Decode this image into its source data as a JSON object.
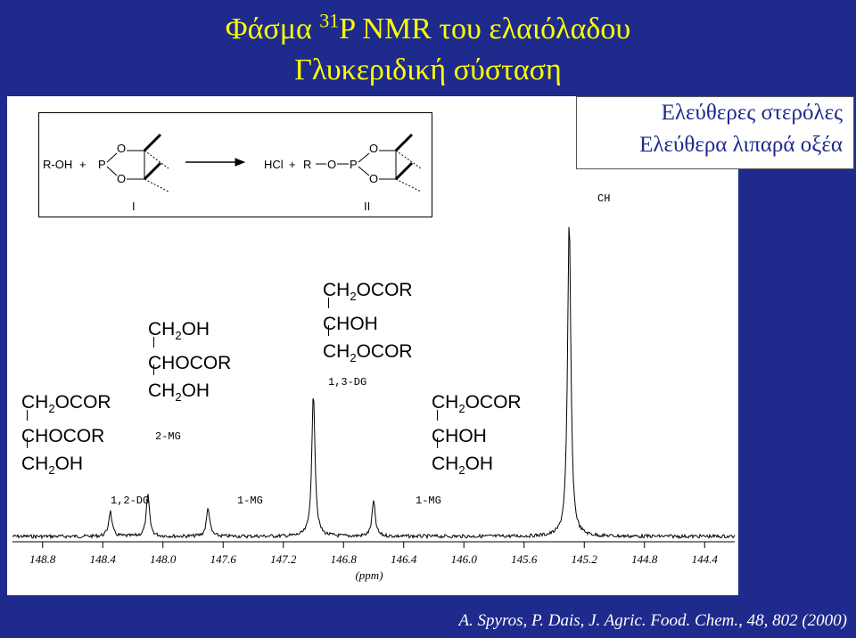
{
  "title": {
    "prefix": "Φάσμα ",
    "isotope": "31",
    "rest": "P NMR του ελαιόλαδου",
    "line2": "Γλυκεριδική σύσταση"
  },
  "label_box": {
    "line1": "Ελεύθερες στερόλες",
    "line2": "Ελεύθερα λιπαρά οξέα"
  },
  "reaction": {
    "left_reagent": "R-OH",
    "plus1": "+",
    "p_left": "P",
    "o_left_top": "O",
    "o_left_bottom": "O",
    "product_hcl": "HCl",
    "plus2": "+",
    "r_right": "R",
    "o_mid": "O",
    "p_right": "P",
    "o_right_top": "O",
    "o_right_bottom": "O",
    "label_I": "I",
    "label_II": "II"
  },
  "peak_labels": {
    "ch": "CH",
    "dg13": "1,3-DG",
    "mg2": "2-MG",
    "dg12": "1,2-DG",
    "mg1_left": "1-MG",
    "mg1_right": "1-MG"
  },
  "structures": {
    "dg12": [
      "CH",
      "2",
      "OCOR",
      "CHOCOR",
      "CH",
      "2",
      "OH"
    ],
    "mg2": [
      "CH",
      "2",
      "OH",
      "CHOCOR",
      "CH",
      "2",
      "OH"
    ],
    "dg13": [
      "CH",
      "2",
      "OCOR",
      "CHOH",
      "CH",
      "2",
      "OCOR"
    ],
    "mg1": [
      "CH",
      "2",
      "OCOR",
      "CHOH",
      "CH",
      "2",
      "OH"
    ]
  },
  "chart_data": {
    "type": "line",
    "xlabel": "(ppm)",
    "ticks": [
      "148.8",
      "148.4",
      "148.0",
      "147.6",
      "147.2",
      "146.8",
      "146.4",
      "146.0",
      "145.6",
      "145.2",
      "144.8",
      "144.4"
    ],
    "xlim": [
      149.0,
      144.2
    ],
    "x_reversed": true,
    "peaks": [
      {
        "label": "1,2-DG",
        "ppm": 148.35,
        "height": 0.08
      },
      {
        "label": "2-MG",
        "ppm": 148.1,
        "height": 0.13
      },
      {
        "label": "1-MG",
        "ppm": 147.7,
        "height": 0.09
      },
      {
        "label": "1,3-DG",
        "ppm": 147.0,
        "height": 0.45
      },
      {
        "label": "1-MG",
        "ppm": 146.6,
        "height": 0.11
      },
      {
        "label": "CH",
        "ppm": 145.3,
        "height": 1.0
      }
    ]
  },
  "citation": "A. Spyros, P. Dais, J. Agric. Food. Chem., 48, 802 (2000)"
}
